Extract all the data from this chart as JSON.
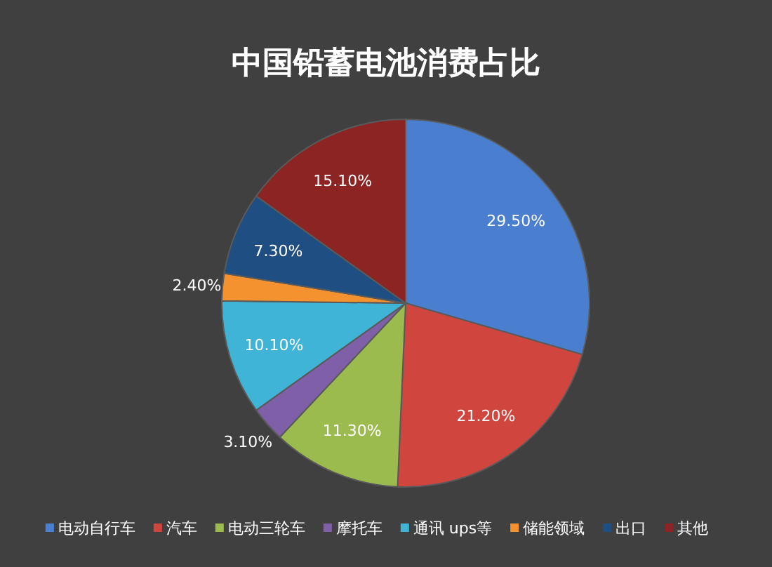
{
  "chart_data": {
    "type": "pie",
    "title": "中国铅蓄电池消费占比",
    "categories": [
      "电动自行车",
      "汽车",
      "电动三轮车",
      "摩托车",
      "通讯 ups等",
      "储能领域",
      "出口",
      "其他"
    ],
    "values": [
      29.5,
      21.2,
      11.3,
      3.1,
      10.1,
      2.4,
      7.3,
      15.1
    ],
    "value_labels": [
      "29.50%",
      "21.20%",
      "11.30%",
      "3.10%",
      "10.10%",
      "2.40%",
      "7.30%",
      "15.10%"
    ],
    "colors": [
      "#4a7fd0",
      "#d0463f",
      "#9bbb4f",
      "#7e5fa8",
      "#3fb4d6",
      "#f59230",
      "#1f4f82",
      "#8c2424"
    ],
    "legend": "bottom"
  }
}
